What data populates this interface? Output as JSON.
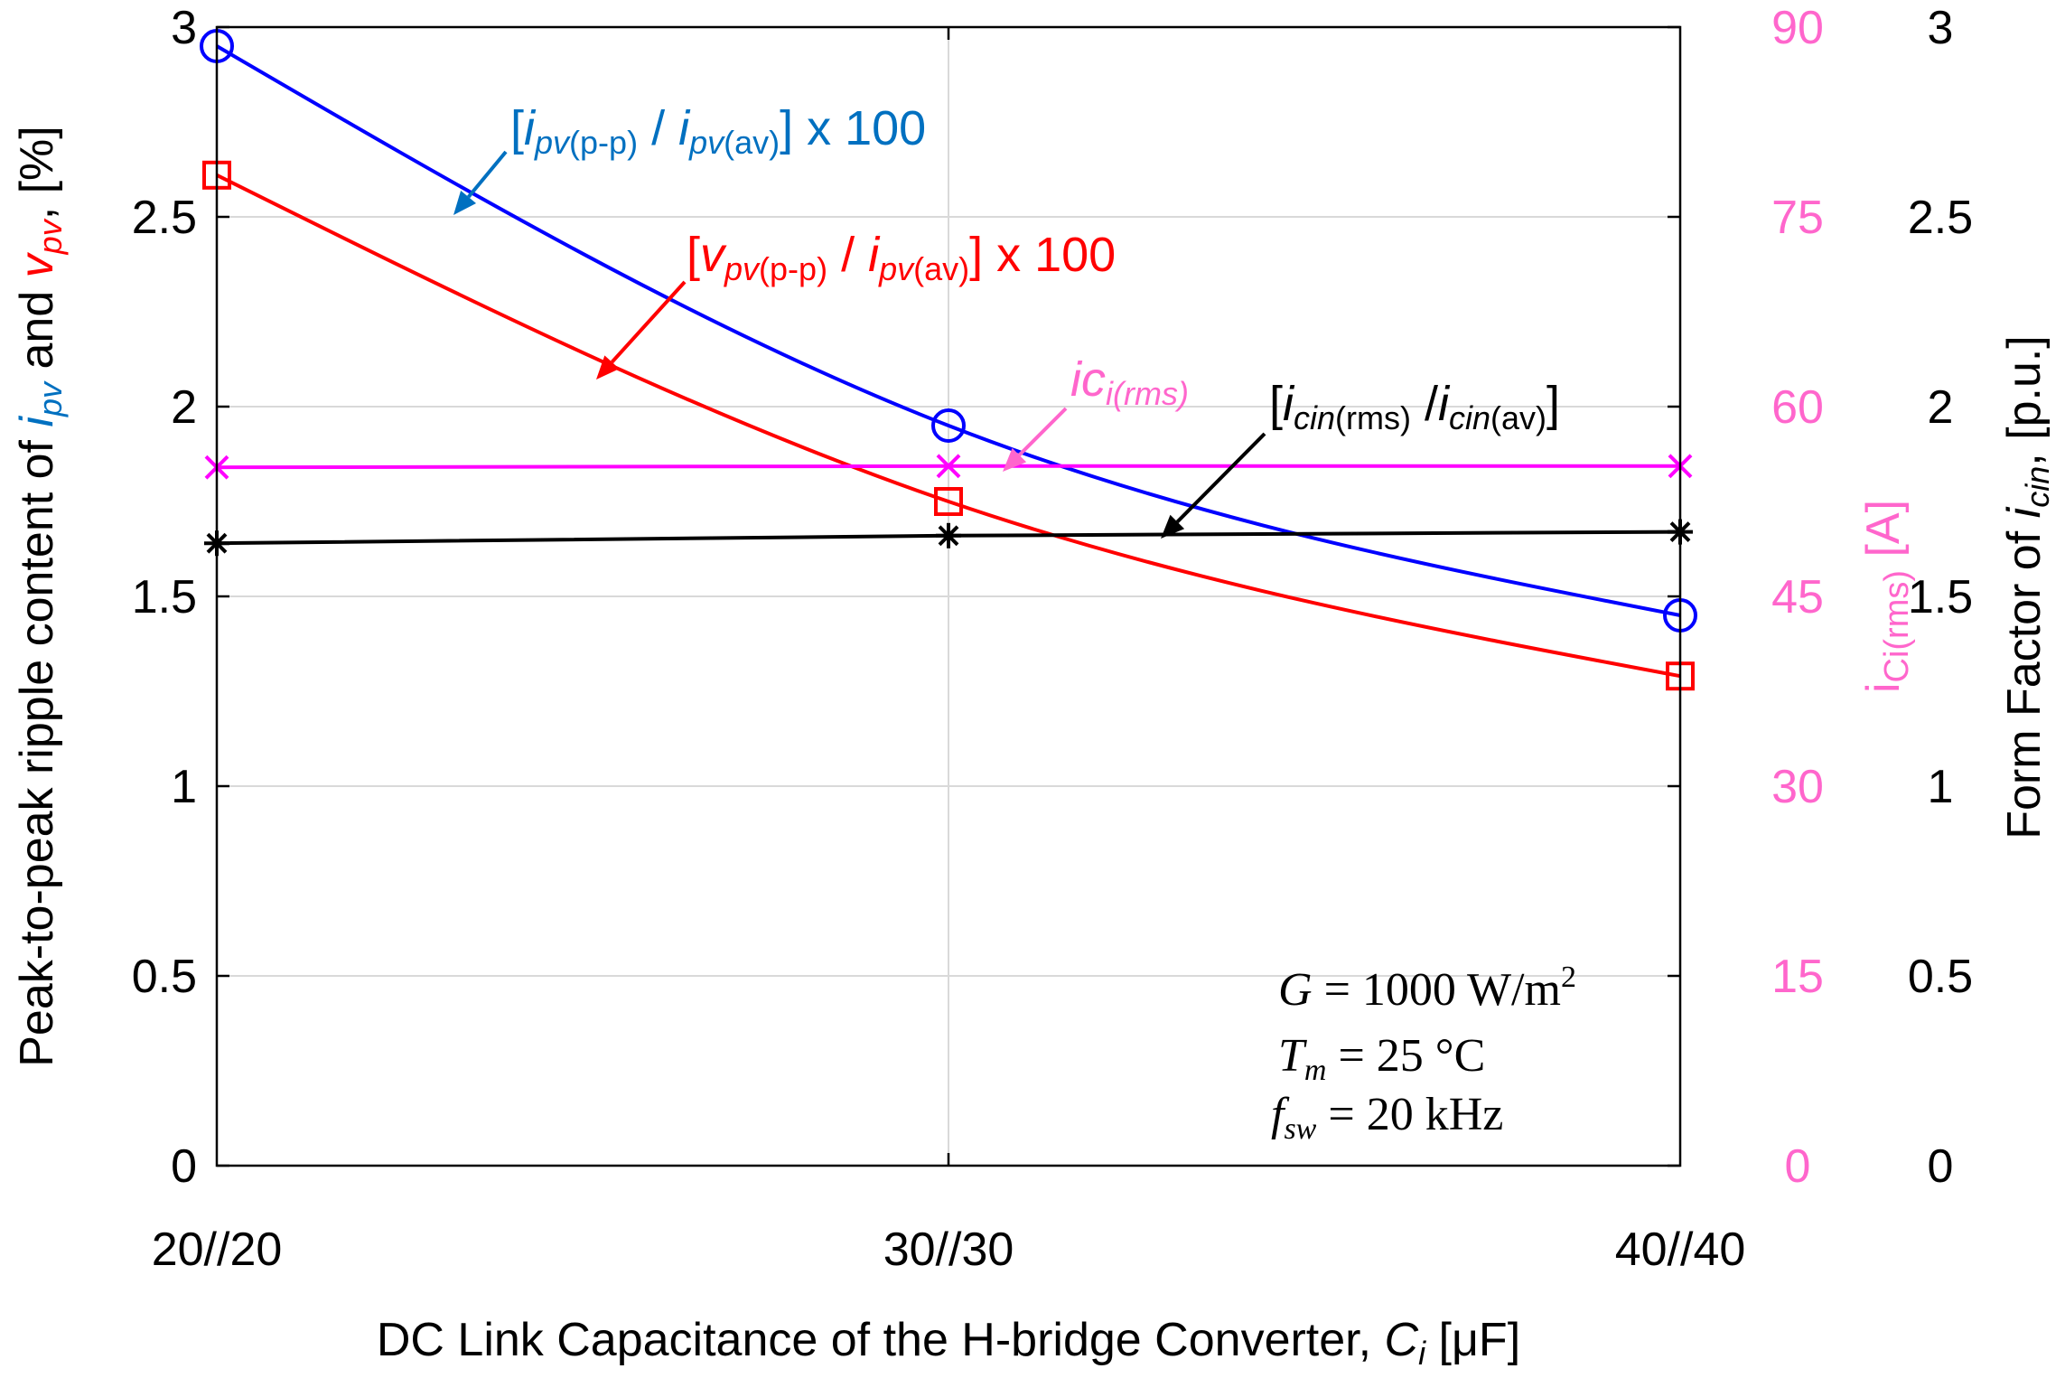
{
  "chart_data": {
    "type": "line",
    "title": "",
    "xlabel": {
      "prefix": "DC Link Capacitance of the H-bridge Converter, ",
      "var": "C",
      "sub": "i",
      "suffix": " [μF]"
    },
    "ylabel_left": {
      "part1": "Peak-to-peak ripple content of ",
      "var1": "i",
      "sub1": "pv",
      "part2": " and ",
      "var2": "v",
      "sub2": "pv",
      "part3": ", [%]"
    },
    "ylabel_right_pink": {
      "var": "i",
      "sub": "Ci(rms)",
      "unit": " [A]"
    },
    "ylabel_right_black": {
      "prefix": "Form Factor of ",
      "var": "i",
      "sub": "cin",
      "suffix": ", [p.u.]"
    },
    "categories": [
      "20//20",
      "30//30",
      "40//40"
    ],
    "x": [
      20,
      30,
      40
    ],
    "xlim": [
      20,
      40
    ],
    "ylim": [
      0,
      3
    ],
    "y_ticks": [
      "0",
      "0.5",
      "1",
      "1.5",
      "2",
      "2.5",
      "3"
    ],
    "ylim_right_pink": [
      0,
      90
    ],
    "y_right_pink_ticks": [
      "0",
      "15",
      "30",
      "45",
      "60",
      "75",
      "90"
    ],
    "ylim_right_black": [
      0,
      3
    ],
    "y_right_black_ticks": [
      "0",
      "0.5",
      "1",
      "1.5",
      "2",
      "2.5",
      "3"
    ],
    "grid": true,
    "series": [
      {
        "name": "ipv ripple",
        "color": "#0000ff",
        "marker": "circle",
        "axis": "left",
        "values": [
          2.95,
          1.95,
          1.45
        ]
      },
      {
        "name": "vpv ripple",
        "color": "#ff0000",
        "marker": "square",
        "axis": "left",
        "values": [
          2.61,
          1.75,
          1.29
        ]
      },
      {
        "name": "iCi(rms)",
        "color": "#ff00ff",
        "marker": "x",
        "axis": "right_pink",
        "values": [
          55.2,
          55.3,
          55.3
        ]
      },
      {
        "name": "icin form factor",
        "color": "#000000",
        "marker": "asterisk",
        "axis": "right_black",
        "values": [
          1.64,
          1.66,
          1.67
        ]
      }
    ],
    "annotations": {
      "ipv": {
        "open": "[",
        "v1": "i",
        "s1": "pv",
        "r1": "(p-p)",
        "mid": " / ",
        "v2": "i",
        "s2": "pv",
        "r2": "(av)",
        "close": "] x 100",
        "color": "#0070c0"
      },
      "vpv": {
        "open": "[",
        "v1": "v",
        "s1": "pv",
        "r1": "(p-p)",
        "mid": " / ",
        "v2": "i",
        "s2": "pv",
        "r2": "(av)",
        "close": "] x 100",
        "color": "#ff0000"
      },
      "ici": {
        "v1": "ic",
        "s1": "i(rms)",
        "color": "#ff66cc"
      },
      "icin": {
        "open": "[",
        "v1": "i",
        "s1": "cin",
        "r1": "(rms)",
        "mid": " /",
        "v2": "i",
        "s2": "cin",
        "r2": "(av)",
        "close": "]"
      }
    },
    "conditions": {
      "g_var": "G",
      "g_text": " = 1000 W/m",
      "g_sup": "2",
      "t_var": "T",
      "t_sub": "m",
      "t_text": " = 25 °C",
      "f_var": "f",
      "f_sub": "sw",
      "f_text": " = 20 kHz"
    }
  }
}
